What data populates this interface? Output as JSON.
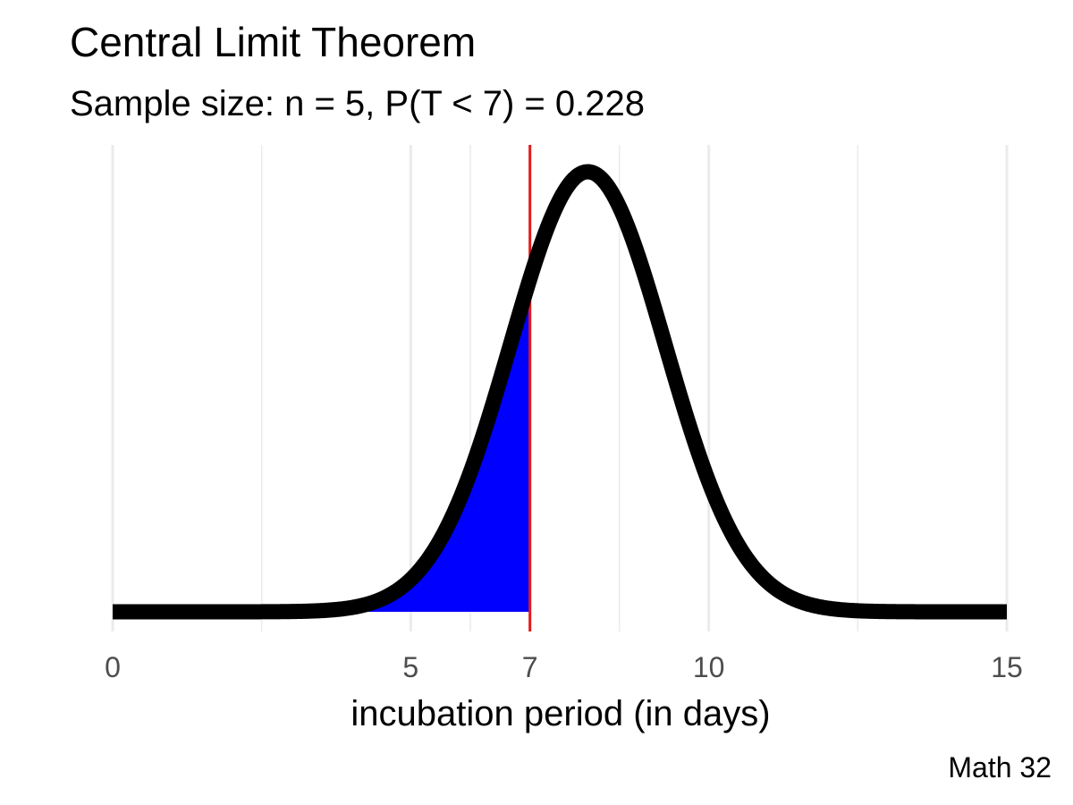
{
  "chart_data": {
    "type": "area",
    "title": "Central Limit Theorem",
    "subtitle": "Sample size: n = 5, P(T < 7) = 0.228",
    "xlabel": "incubation period (in days)",
    "ylabel": "",
    "caption": "Math 32",
    "xlim": [
      0,
      15
    ],
    "x_ticks": [
      0,
      5,
      7,
      10,
      15
    ],
    "grid": true,
    "distribution": {
      "family": "normal",
      "mean": 7.97,
      "sd": 1.3
    },
    "threshold": 7,
    "shaded_region": {
      "from": 0,
      "to": 7,
      "probability": 0.228
    },
    "colors": {
      "curve": "#000000",
      "fill": "#0000ff",
      "threshold_line": "#e31a1c",
      "grid": "#ebebeb"
    }
  }
}
